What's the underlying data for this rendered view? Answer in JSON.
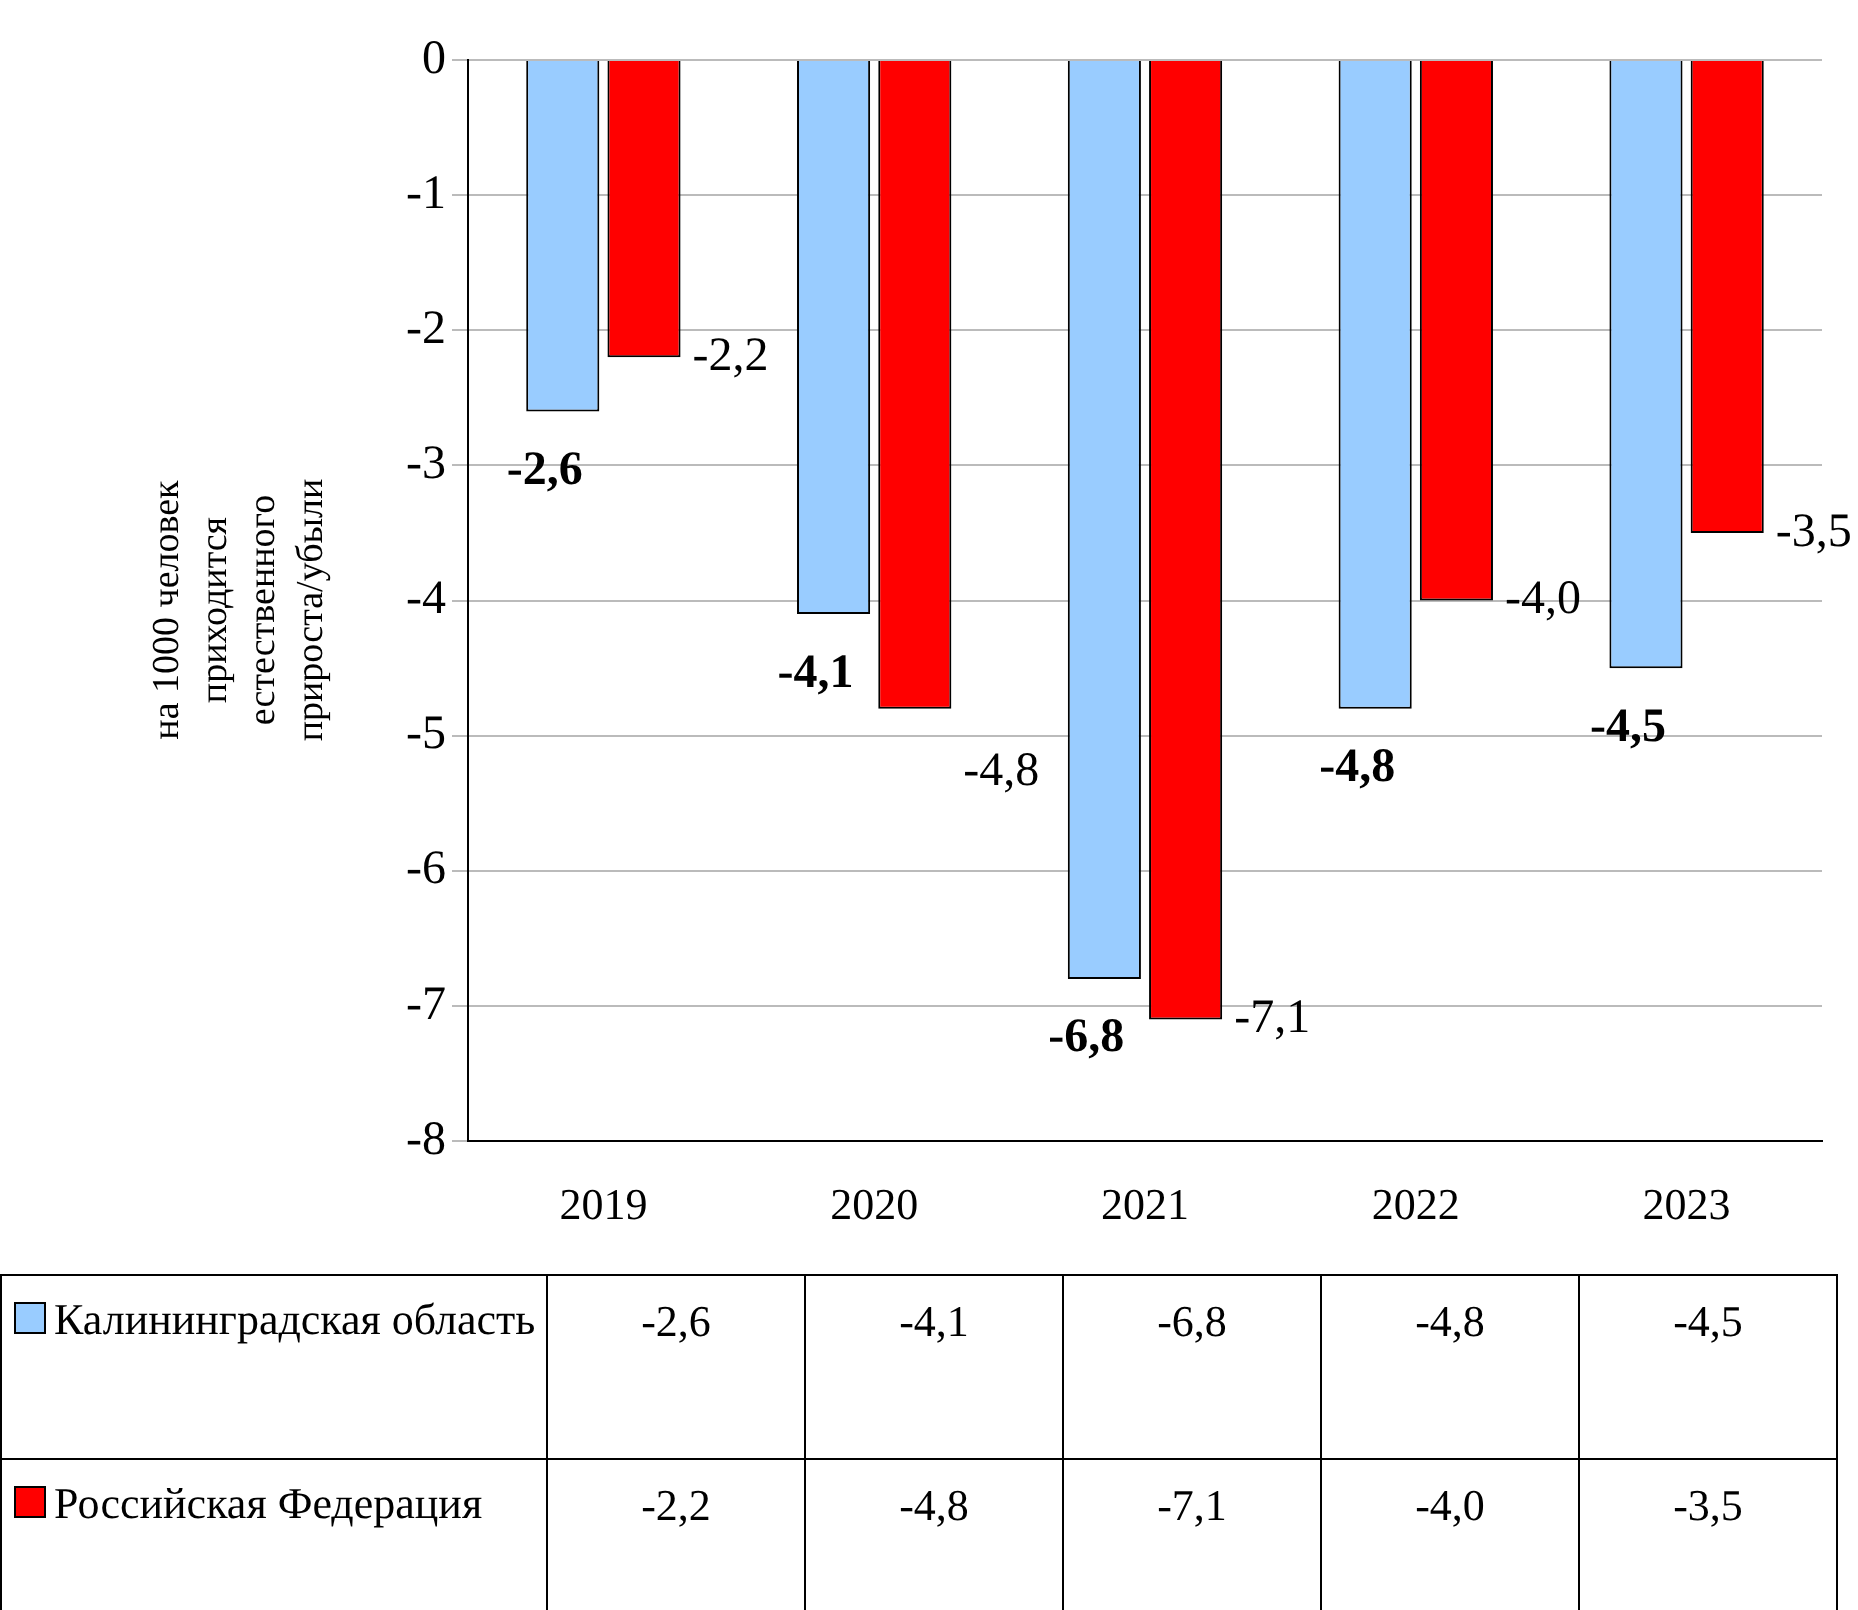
{
  "chart_data": {
    "type": "bar",
    "ylabel": "на 1000 человек приходится естественного прироста/убыли",
    "categories": [
      "2019",
      "2020",
      "2021",
      "2022",
      "2023"
    ],
    "series": [
      {
        "name": "Калининградская область",
        "color": "#99ccff",
        "values": [
          -2.6,
          -4.1,
          -6.8,
          -4.8,
          -4.5
        ],
        "value_labels": [
          "-2,6",
          "-4,1",
          "-6,8",
          "-4,8",
          "-4,5"
        ]
      },
      {
        "name": "Российская Федерация",
        "color": "#ff0000",
        "values": [
          -2.2,
          -4.8,
          -7.1,
          -4.0,
          -3.5
        ],
        "value_labels": [
          "-2,2",
          "-4,8",
          "-7,1",
          "-4,0",
          "-3,5"
        ]
      }
    ],
    "ylim": [
      -8,
      0
    ],
    "yticks": [
      0,
      -1,
      -2,
      -3,
      -4,
      -5,
      -6,
      -7,
      -8
    ],
    "grid": "y",
    "legend": "bottom"
  }
}
